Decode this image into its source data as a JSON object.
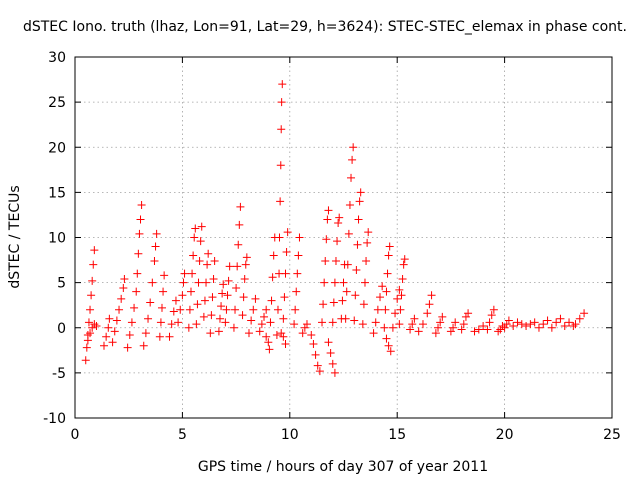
{
  "chart_data": {
    "type": "scatter",
    "title": "dSTEC Iono. truth (lhaz, Lon=91, Lat=29, h=3624): STEC-STEC_elemax in phase cont.",
    "xlabel": "GPS time / hours of day 307 of year 2011",
    "ylabel": "dSTEC  / TECUs",
    "xlim": [
      0,
      25
    ],
    "ylim": [
      -10,
      30
    ],
    "xticks": [
      0,
      5,
      10,
      15,
      20,
      25
    ],
    "yticks": [
      -10,
      -5,
      0,
      5,
      10,
      15,
      20,
      25,
      30
    ],
    "grid": true,
    "marker": "+",
    "color": "#ff0000",
    "series": [
      {
        "values": [
          [
            0.5,
            -3.6
          ],
          [
            0.55,
            -2.2
          ],
          [
            0.6,
            -0.8
          ],
          [
            0.65,
            0.6
          ],
          [
            0.7,
            2.0
          ],
          [
            0.75,
            3.6
          ],
          [
            0.8,
            5.2
          ],
          [
            0.85,
            7.0
          ],
          [
            0.9,
            8.6
          ],
          [
            0.6,
            -1.4
          ],
          [
            0.7,
            -0.6
          ],
          [
            0.8,
            0.0
          ],
          [
            0.9,
            0.4
          ],
          [
            1.0,
            0.2
          ],
          [
            1.35,
            -2.0
          ],
          [
            1.45,
            -1.0
          ],
          [
            1.55,
            0.0
          ],
          [
            1.6,
            1.0
          ],
          [
            1.75,
            -1.6
          ],
          [
            1.85,
            -0.4
          ],
          [
            1.95,
            0.8
          ],
          [
            2.05,
            2.0
          ],
          [
            2.15,
            3.2
          ],
          [
            2.25,
            4.4
          ],
          [
            2.3,
            5.4
          ],
          [
            2.45,
            -2.2
          ],
          [
            2.55,
            -0.8
          ],
          [
            2.65,
            0.6
          ],
          [
            2.75,
            2.2
          ],
          [
            2.85,
            4.0
          ],
          [
            2.9,
            6.0
          ],
          [
            2.95,
            8.2
          ],
          [
            3.0,
            10.4
          ],
          [
            3.05,
            12.0
          ],
          [
            3.1,
            13.6
          ],
          [
            3.2,
            -2.0
          ],
          [
            3.3,
            -0.6
          ],
          [
            3.4,
            1.0
          ],
          [
            3.5,
            2.8
          ],
          [
            3.6,
            5.0
          ],
          [
            3.7,
            7.4
          ],
          [
            3.75,
            9.0
          ],
          [
            3.8,
            10.4
          ],
          [
            3.95,
            -1.0
          ],
          [
            4.0,
            0.6
          ],
          [
            4.05,
            2.2
          ],
          [
            4.1,
            4.0
          ],
          [
            4.15,
            5.8
          ],
          [
            4.4,
            -1.0
          ],
          [
            4.5,
            0.4
          ],
          [
            4.6,
            1.8
          ],
          [
            4.7,
            3.0
          ],
          [
            4.8,
            0.6
          ],
          [
            4.9,
            2.0
          ],
          [
            5.0,
            3.6
          ],
          [
            5.05,
            5.0
          ],
          [
            5.1,
            6.0
          ],
          [
            5.3,
            0.0
          ],
          [
            5.35,
            2.0
          ],
          [
            5.4,
            4.0
          ],
          [
            5.45,
            6.0
          ],
          [
            5.5,
            8.0
          ],
          [
            5.55,
            10.0
          ],
          [
            5.6,
            11.0
          ],
          [
            5.65,
            0.4
          ],
          [
            5.7,
            2.6
          ],
          [
            5.75,
            5.0
          ],
          [
            5.8,
            7.4
          ],
          [
            5.85,
            9.6
          ],
          [
            5.9,
            11.2
          ],
          [
            6.0,
            1.2
          ],
          [
            6.05,
            3.0
          ],
          [
            6.1,
            5.0
          ],
          [
            6.15,
            7.0
          ],
          [
            6.2,
            8.2
          ],
          [
            6.3,
            -0.6
          ],
          [
            6.35,
            1.4
          ],
          [
            6.4,
            3.4
          ],
          [
            6.45,
            5.4
          ],
          [
            6.5,
            7.4
          ],
          [
            6.7,
            -0.4
          ],
          [
            6.75,
            1.0
          ],
          [
            6.8,
            2.4
          ],
          [
            6.85,
            3.8
          ],
          [
            6.9,
            4.8
          ],
          [
            7.0,
            0.6
          ],
          [
            7.05,
            2.0
          ],
          [
            7.1,
            3.6
          ],
          [
            7.15,
            5.2
          ],
          [
            7.2,
            6.8
          ],
          [
            7.4,
            0.0
          ],
          [
            7.45,
            2.0
          ],
          [
            7.5,
            4.4
          ],
          [
            7.55,
            6.8
          ],
          [
            7.6,
            9.2
          ],
          [
            7.65,
            11.4
          ],
          [
            7.7,
            13.4
          ],
          [
            7.8,
            1.4
          ],
          [
            7.85,
            3.4
          ],
          [
            7.9,
            5.4
          ],
          [
            7.95,
            7.0
          ],
          [
            8.0,
            7.8
          ],
          [
            8.1,
            -0.6
          ],
          [
            8.2,
            0.8
          ],
          [
            8.3,
            2.0
          ],
          [
            8.4,
            3.2
          ],
          [
            8.6,
            -0.4
          ],
          [
            8.7,
            0.4
          ],
          [
            8.8,
            1.2
          ],
          [
            8.9,
            2.0
          ],
          [
            8.9,
            -1.0
          ],
          [
            9.0,
            -1.6
          ],
          [
            9.05,
            -2.4
          ],
          [
            9.1,
            0.6
          ],
          [
            9.15,
            3.0
          ],
          [
            9.2,
            5.6
          ],
          [
            9.25,
            8.0
          ],
          [
            9.3,
            10.0
          ],
          [
            9.4,
            -0.8
          ],
          [
            9.45,
            2.0
          ],
          [
            9.5,
            6.0
          ],
          [
            9.52,
            10.0
          ],
          [
            9.55,
            14.0
          ],
          [
            9.58,
            18.0
          ],
          [
            9.6,
            22.0
          ],
          [
            9.62,
            25.0
          ],
          [
            9.65,
            27.0
          ],
          [
            9.6,
            -0.6
          ],
          [
            9.7,
            -1.0
          ],
          [
            9.8,
            -1.8
          ],
          [
            9.7,
            1.0
          ],
          [
            9.75,
            3.4
          ],
          [
            9.8,
            6.0
          ],
          [
            9.85,
            8.4
          ],
          [
            9.9,
            10.6
          ],
          [
            10.2,
            0.4
          ],
          [
            10.25,
            2.0
          ],
          [
            10.3,
            4.0
          ],
          [
            10.35,
            6.0
          ],
          [
            10.4,
            8.0
          ],
          [
            10.45,
            10.0
          ],
          [
            10.6,
            -0.6
          ],
          [
            10.7,
            0.0
          ],
          [
            10.8,
            0.4
          ],
          [
            11.0,
            -0.8
          ],
          [
            11.1,
            -1.8
          ],
          [
            11.2,
            -3.0
          ],
          [
            11.3,
            -4.2
          ],
          [
            11.4,
            -4.8
          ],
          [
            11.5,
            0.6
          ],
          [
            11.55,
            2.6
          ],
          [
            11.6,
            5.0
          ],
          [
            11.65,
            7.4
          ],
          [
            11.7,
            9.8
          ],
          [
            11.75,
            12.0
          ],
          [
            11.8,
            13.0
          ],
          [
            11.8,
            -1.6
          ],
          [
            11.9,
            -2.8
          ],
          [
            12.0,
            -4.0
          ],
          [
            12.1,
            -5.0
          ],
          [
            12.0,
            0.6
          ],
          [
            12.05,
            2.8
          ],
          [
            12.1,
            5.0
          ],
          [
            12.15,
            7.4
          ],
          [
            12.2,
            9.6
          ],
          [
            12.25,
            11.6
          ],
          [
            12.3,
            12.2
          ],
          [
            12.4,
            1.0
          ],
          [
            12.45,
            3.0
          ],
          [
            12.5,
            5.0
          ],
          [
            12.55,
            7.0
          ],
          [
            12.6,
            1.0
          ],
          [
            12.65,
            4.0
          ],
          [
            12.7,
            7.0
          ],
          [
            12.75,
            10.4
          ],
          [
            12.8,
            13.6
          ],
          [
            12.85,
            16.6
          ],
          [
            12.9,
            18.6
          ],
          [
            12.95,
            20.0
          ],
          [
            13.0,
            0.8
          ],
          [
            13.05,
            3.6
          ],
          [
            13.1,
            6.4
          ],
          [
            13.15,
            9.2
          ],
          [
            13.2,
            12.0
          ],
          [
            13.25,
            14.0
          ],
          [
            13.3,
            15.0
          ],
          [
            13.4,
            0.4
          ],
          [
            13.45,
            2.6
          ],
          [
            13.5,
            5.0
          ],
          [
            13.55,
            7.4
          ],
          [
            13.6,
            9.4
          ],
          [
            13.65,
            10.6
          ],
          [
            13.9,
            -0.6
          ],
          [
            14.0,
            0.6
          ],
          [
            14.1,
            2.0
          ],
          [
            14.2,
            3.4
          ],
          [
            14.3,
            4.6
          ],
          [
            14.4,
            0.0
          ],
          [
            14.45,
            2.0
          ],
          [
            14.5,
            4.0
          ],
          [
            14.55,
            6.0
          ],
          [
            14.6,
            8.0
          ],
          [
            14.65,
            9.0
          ],
          [
            14.5,
            -1.2
          ],
          [
            14.6,
            -2.0
          ],
          [
            14.7,
            -2.6
          ],
          [
            14.8,
            0.0
          ],
          [
            14.9,
            1.6
          ],
          [
            15.0,
            3.2
          ],
          [
            15.1,
            4.2
          ],
          [
            15.1,
            0.4
          ],
          [
            15.15,
            2.0
          ],
          [
            15.2,
            3.6
          ],
          [
            15.25,
            5.4
          ],
          [
            15.3,
            7.0
          ],
          [
            15.35,
            7.6
          ],
          [
            15.6,
            -0.2
          ],
          [
            15.7,
            0.4
          ],
          [
            15.8,
            1.0
          ],
          [
            16.0,
            -0.4
          ],
          [
            16.2,
            0.4
          ],
          [
            16.4,
            1.6
          ],
          [
            16.5,
            2.6
          ],
          [
            16.6,
            3.6
          ],
          [
            16.8,
            -0.6
          ],
          [
            16.9,
            0.0
          ],
          [
            17.0,
            0.6
          ],
          [
            17.1,
            1.2
          ],
          [
            17.5,
            -0.4
          ],
          [
            17.6,
            0.0
          ],
          [
            17.7,
            0.6
          ],
          [
            18.0,
            -0.2
          ],
          [
            18.1,
            0.4
          ],
          [
            18.2,
            1.2
          ],
          [
            18.3,
            1.6
          ],
          [
            18.6,
            -0.4
          ],
          [
            18.8,
            -0.2
          ],
          [
            19.0,
            0.2
          ],
          [
            19.2,
            -0.2
          ],
          [
            19.3,
            0.6
          ],
          [
            19.4,
            1.4
          ],
          [
            19.5,
            2.0
          ],
          [
            19.7,
            -0.4
          ],
          [
            19.8,
            -0.2
          ],
          [
            19.9,
            0.2
          ],
          [
            20.0,
            0.0
          ],
          [
            20.1,
            0.4
          ],
          [
            20.2,
            0.8
          ],
          [
            20.4,
            0.2
          ],
          [
            20.6,
            0.6
          ],
          [
            20.8,
            0.4
          ],
          [
            21.0,
            0.2
          ],
          [
            21.2,
            0.4
          ],
          [
            21.4,
            0.6
          ],
          [
            21.6,
            0.0
          ],
          [
            21.8,
            0.4
          ],
          [
            22.0,
            0.8
          ],
          [
            22.2,
            0.0
          ],
          [
            22.4,
            0.6
          ],
          [
            22.6,
            1.0
          ],
          [
            22.8,
            0.2
          ],
          [
            23.0,
            0.6
          ],
          [
            23.2,
            0.2
          ],
          [
            23.3,
            0.4
          ],
          [
            23.5,
            1.0
          ],
          [
            23.7,
            1.6
          ]
        ]
      }
    ]
  }
}
